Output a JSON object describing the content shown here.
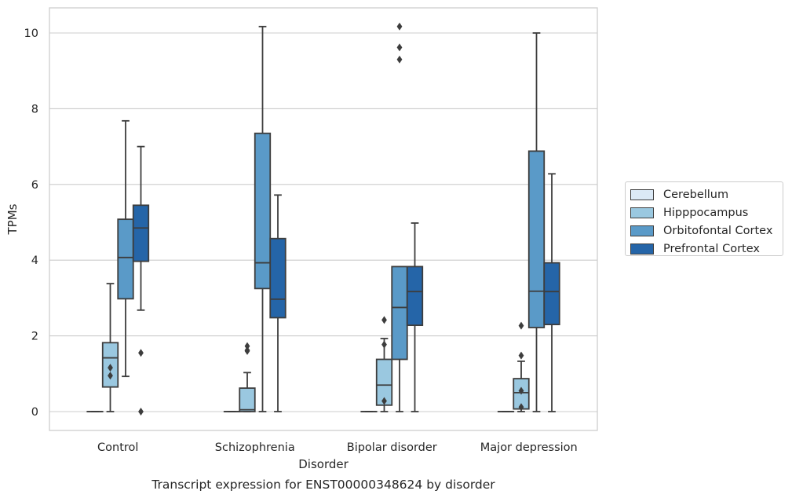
{
  "chart_data": {
    "type": "box",
    "title": "Transcript expression for ENST00000348624 by disorder",
    "xlabel": "Disorder",
    "ylabel": "TPMs",
    "ylim": [
      -0.5,
      10.7
    ],
    "yticks": [
      0,
      2,
      4,
      6,
      8,
      10
    ],
    "grid": "horizontal",
    "legend_position": "outside-right",
    "categories": [
      "Control",
      "Schizophrenia",
      "Bipolar disorder",
      "Major depression"
    ],
    "series": [
      {
        "name": "Cerebellum",
        "color": "#dbe9f6",
        "boxes": [
          {
            "q1": 0,
            "median": 0,
            "q3": 0,
            "whisker_low": 0,
            "whisker_high": 0,
            "outliers": []
          },
          {
            "q1": 0,
            "median": 0,
            "q3": 0,
            "whisker_low": 0,
            "whisker_high": 0,
            "outliers": []
          },
          {
            "q1": 0,
            "median": 0,
            "q3": 0,
            "whisker_low": 0,
            "whisker_high": 0,
            "outliers": []
          },
          {
            "q1": 0,
            "median": 0,
            "q3": 0,
            "whisker_low": 0,
            "whisker_high": 0,
            "outliers": []
          }
        ]
      },
      {
        "name": "Hipppocampus",
        "color": "#9ac8e0",
        "boxes": [
          {
            "q1": 0.65,
            "median": 1.42,
            "q3": 1.82,
            "whisker_low": 0,
            "whisker_high": 3.38,
            "outliers": [
              0.95,
              1.16
            ]
          },
          {
            "q1": 0.0,
            "median": 0.05,
            "q3": 0.62,
            "whisker_low": 0,
            "whisker_high": 1.03,
            "outliers": [
              1.6,
              1.62,
              1.73
            ]
          },
          {
            "q1": 0.17,
            "median": 0.7,
            "q3": 1.38,
            "whisker_low": 0,
            "whisker_high": 1.93,
            "outliers": [
              0.28,
              1.77,
              2.42
            ]
          },
          {
            "q1": 0.07,
            "median": 0.5,
            "q3": 0.87,
            "whisker_low": 0,
            "whisker_high": 1.33,
            "outliers": [
              0.12,
              0.55,
              1.48,
              2.27
            ]
          }
        ]
      },
      {
        "name": "Orbitofontal Cortex",
        "color": "#5a9ac8",
        "boxes": [
          {
            "q1": 2.98,
            "median": 4.07,
            "q3": 5.08,
            "whisker_low": 0.93,
            "whisker_high": 7.68,
            "outliers": []
          },
          {
            "q1": 3.25,
            "median": 3.93,
            "q3": 7.35,
            "whisker_low": 0,
            "whisker_high": 10.17,
            "outliers": []
          },
          {
            "q1": 1.38,
            "median": 2.75,
            "q3": 3.83,
            "whisker_low": 0,
            "whisker_high": 3.83,
            "outliers": [
              9.3,
              9.62,
              10.17
            ]
          },
          {
            "q1": 2.22,
            "median": 3.18,
            "q3": 6.88,
            "whisker_low": 0,
            "whisker_high": 10.0,
            "outliers": []
          }
        ]
      },
      {
        "name": "Prefrontal Cortex",
        "color": "#2565a8",
        "boxes": [
          {
            "q1": 3.97,
            "median": 4.85,
            "q3": 5.45,
            "whisker_low": 2.68,
            "whisker_high": 7.0,
            "outliers": [
              0.0,
              1.55
            ]
          },
          {
            "q1": 2.48,
            "median": 2.97,
            "q3": 4.57,
            "whisker_low": 0,
            "whisker_high": 5.72,
            "outliers": []
          },
          {
            "q1": 2.28,
            "median": 3.17,
            "q3": 3.83,
            "whisker_low": 0,
            "whisker_high": 4.98,
            "outliers": []
          },
          {
            "q1": 2.3,
            "median": 3.17,
            "q3": 3.93,
            "whisker_low": 0,
            "whisker_high": 6.28,
            "outliers": []
          }
        ]
      }
    ]
  }
}
